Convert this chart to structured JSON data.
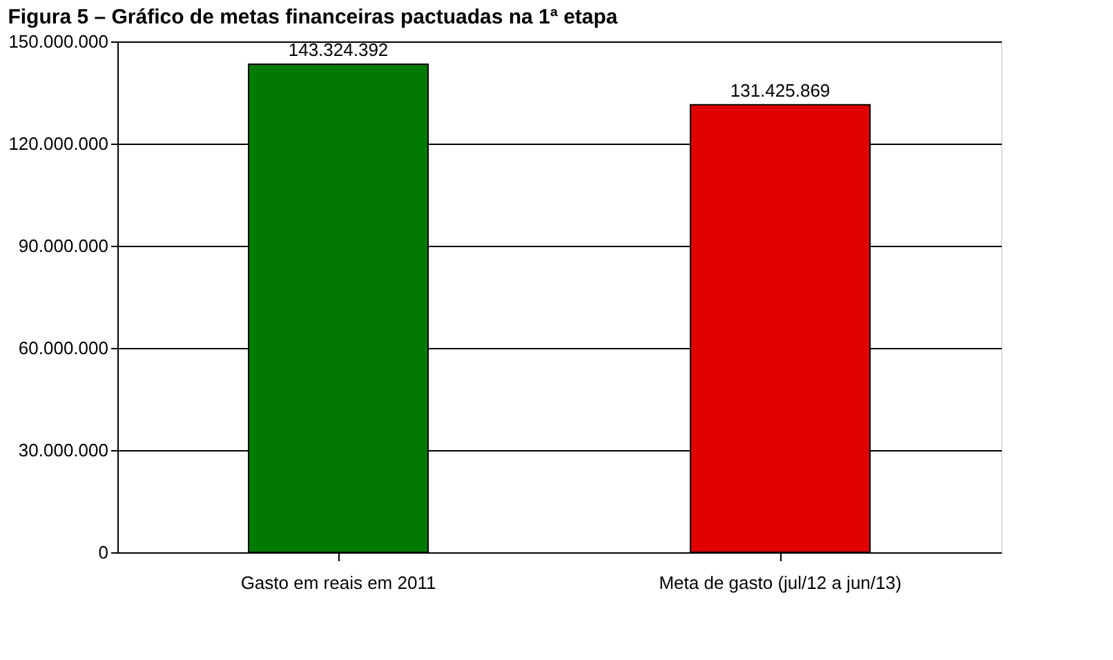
{
  "chart_data": {
    "type": "bar",
    "title": "Figura 5 – Gráfico de metas financeiras pactuadas na 1ª etapa",
    "categories": [
      "Gasto em reais em 2011",
      "Meta de gasto (jul/12 a jun/13)"
    ],
    "values": [
      143324392,
      131425869
    ],
    "colors": [
      "#007a00",
      "#e00000"
    ],
    "value_labels": [
      "143.324.392",
      "131.425.869"
    ],
    "ylim": [
      0,
      150000000
    ],
    "yticks": [
      {
        "value": 0,
        "label": "0"
      },
      {
        "value": 30000000,
        "label": "30.000.000"
      },
      {
        "value": 60000000,
        "label": "60.000.000"
      },
      {
        "value": 90000000,
        "label": "90.000.000"
      },
      {
        "value": 120000000,
        "label": "120.000.000"
      },
      {
        "value": 150000000,
        "label": "150.000.000"
      }
    ],
    "grid": "y"
  }
}
